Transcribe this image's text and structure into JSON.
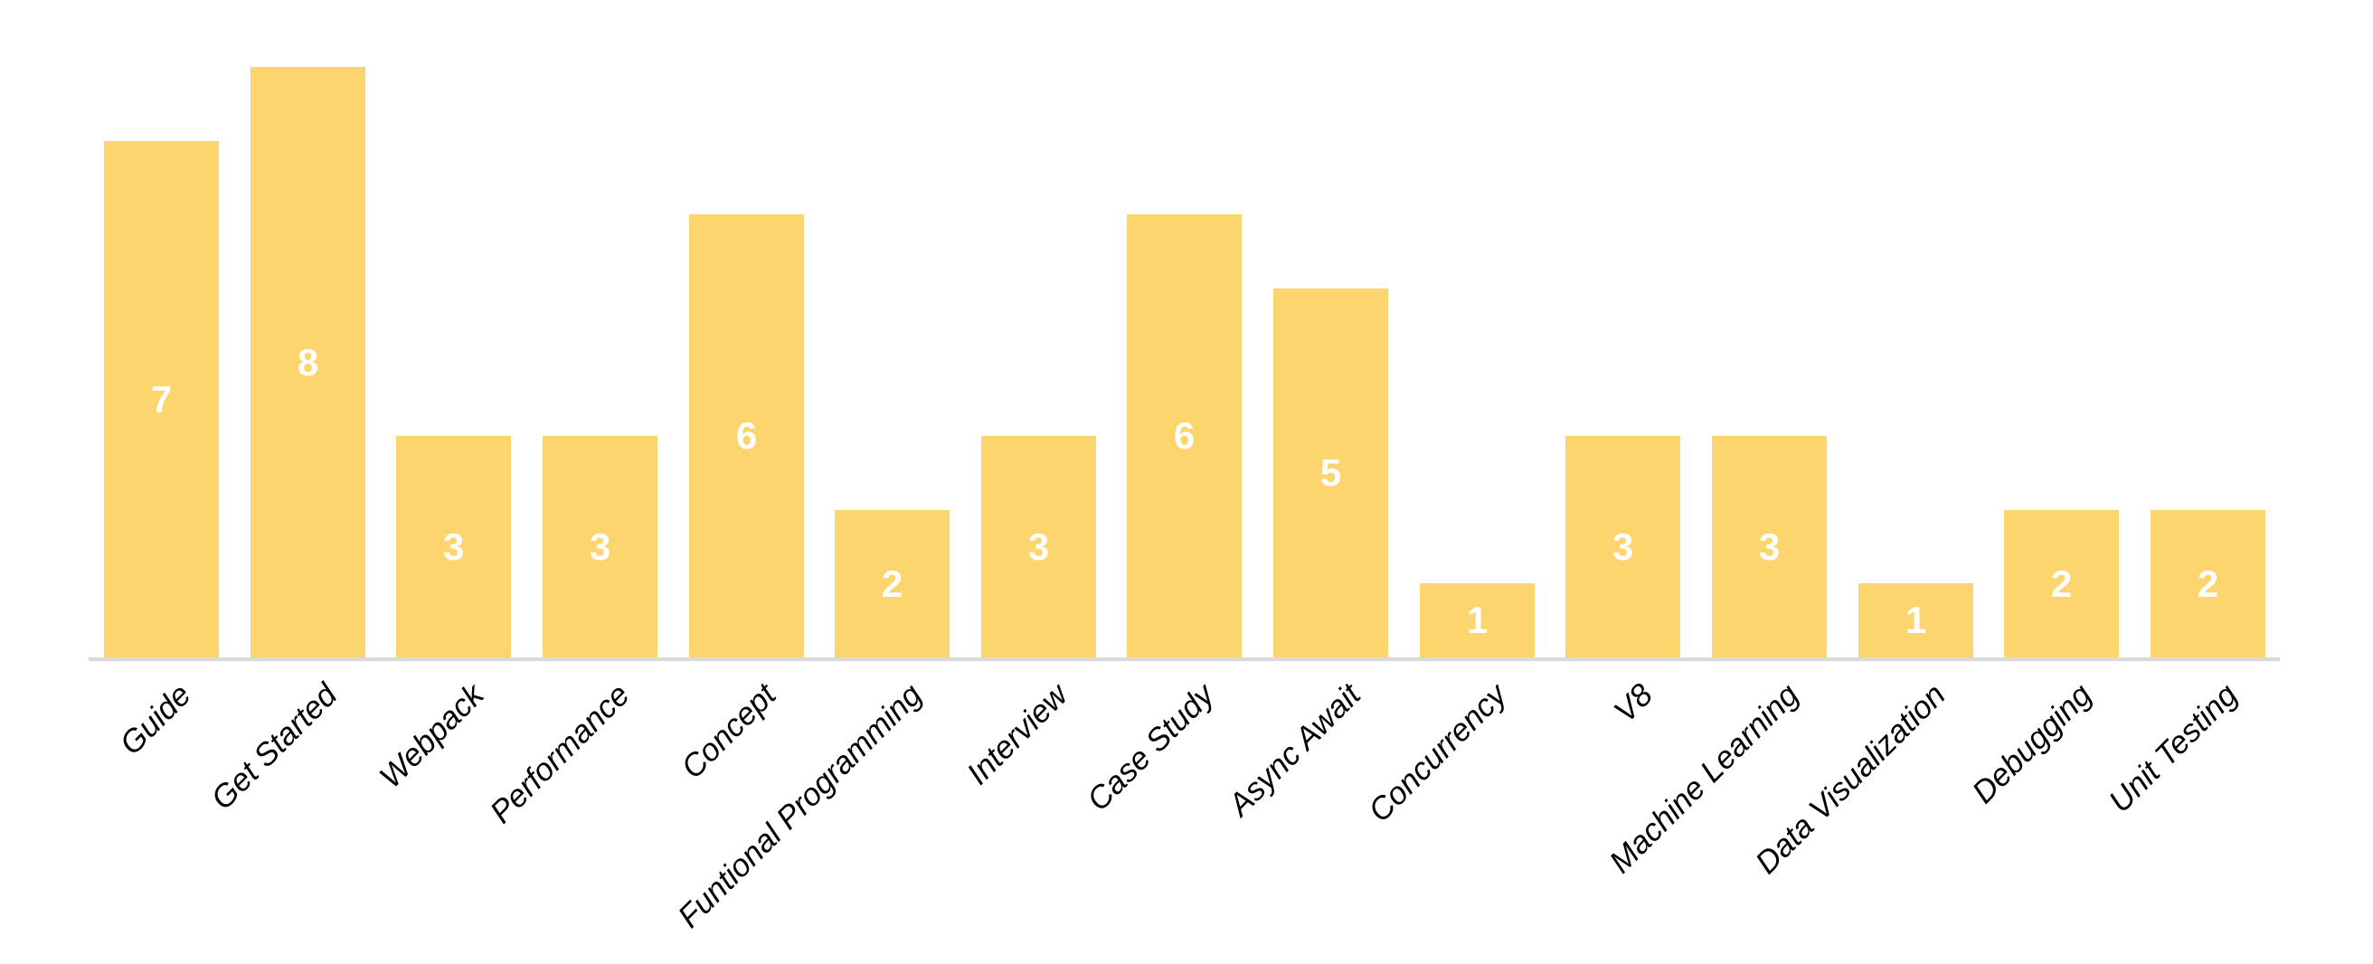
{
  "chart_data": {
    "type": "bar",
    "title": "",
    "xlabel": "",
    "ylabel": "",
    "categories": [
      "Guide",
      "Get Started",
      "Webpack",
      "Performance",
      "Concept",
      "Funtional Programming",
      "Interview",
      "Case Study",
      "Async Await",
      "Concurrency",
      "V8",
      "Machine Learning",
      "Data Visualization",
      "Debugging",
      "Unit Testing"
    ],
    "values": [
      7,
      8,
      3,
      3,
      6,
      2,
      3,
      6,
      5,
      1,
      3,
      3,
      1,
      2,
      2
    ],
    "ylim": [
      0,
      8
    ],
    "grid": false,
    "legend": false,
    "data_labels": true,
    "colors": {
      "bar_fill": "#FDD56E",
      "value_label": "#FFFFFF",
      "axis_line": "#D9D9D9",
      "tick_label": "#000000",
      "background": "#FFFFFF"
    }
  }
}
